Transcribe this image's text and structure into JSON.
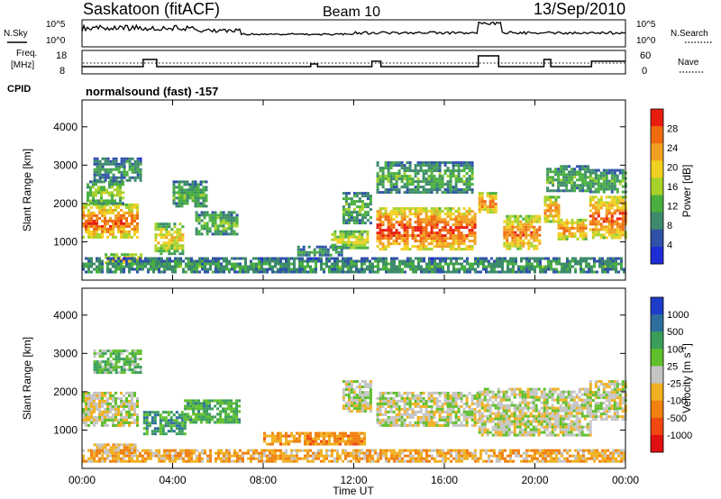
{
  "header": {
    "station": "Saskatoon (fitACF)",
    "beam": "Beam 10",
    "date": "13/Sep/2010"
  },
  "strip_labels": {
    "nsky": "N.Sky",
    "nsky_ticks": [
      "10^5",
      "10^0"
    ],
    "nsearch": "N.Search",
    "nsearch_ticks": [
      "10^5",
      "10^0"
    ],
    "freq_line1": "Freq.",
    "freq_line2": "[MHz]",
    "freq_ticks": [
      "18",
      "8"
    ],
    "nave": "Nave",
    "nave_ticks": [
      "60",
      "0"
    ],
    "cpid": "CPID",
    "cpid_value": "normalsound (fast) -157"
  },
  "x_axis": {
    "label": "Time UT",
    "ticks": [
      "00:00",
      "04:00",
      "08:00",
      "12:00",
      "16:00",
      "20:00",
      "00:00"
    ],
    "range_hours": [
      0,
      24
    ]
  },
  "colors": {
    "power_scale": [
      "#1e2cd6",
      "#2f52a8",
      "#3d8a6c",
      "#49b040",
      "#a6d22a",
      "#f0d020",
      "#f0a020",
      "#f06a10",
      "#e81d10"
    ],
    "velocity_scale": [
      "#1f3cc8",
      "#2e6e9c",
      "#3a9e5a",
      "#5fbf2c",
      "#c4c4c4",
      "#f0b020",
      "#f08010",
      "#f04810",
      "#e01010"
    ]
  },
  "chart_data": [
    {
      "type": "heatmap",
      "title": "",
      "ylabel": "Slant Range [km]",
      "xlabel": "",
      "yticks": [
        1000,
        2000,
        3000,
        4000
      ],
      "ylim": [
        0,
        4700
      ],
      "colorbar": {
        "label": "Power [dB]",
        "ticks": [
          4,
          8,
          12,
          16,
          20,
          24,
          28
        ],
        "range": [
          0,
          32
        ]
      },
      "regions": [
        {
          "t": [
            0.0,
            2.4
          ],
          "r": [
            1100,
            2000
          ],
          "level": 0.85
        },
        {
          "t": [
            0.2,
            1.8
          ],
          "r": [
            2000,
            2600
          ],
          "level": 0.45
        },
        {
          "t": [
            0.5,
            2.6
          ],
          "r": [
            2600,
            3200
          ],
          "level": 0.3
        },
        {
          "t": [
            1.0,
            2.6
          ],
          "r": [
            450,
            700
          ],
          "level": 0.7
        },
        {
          "t": [
            3.2,
            4.5
          ],
          "r": [
            700,
            1500
          ],
          "level": 0.6
        },
        {
          "t": [
            4.0,
            5.5
          ],
          "r": [
            1900,
            2600
          ],
          "level": 0.35
        },
        {
          "t": [
            5.0,
            6.8
          ],
          "r": [
            1200,
            1800
          ],
          "level": 0.4
        },
        {
          "t": [
            9.5,
            11.5
          ],
          "r": [
            650,
            900
          ],
          "level": 0.3
        },
        {
          "t": [
            11.0,
            12.6
          ],
          "r": [
            850,
            1300
          ],
          "level": 0.55
        },
        {
          "t": [
            11.5,
            12.7
          ],
          "r": [
            1500,
            2300
          ],
          "level": 0.35
        },
        {
          "t": [
            13.0,
            17.3
          ],
          "r": [
            800,
            1900
          ],
          "level": 0.9
        },
        {
          "t": [
            13.0,
            17.2
          ],
          "r": [
            2300,
            3100
          ],
          "level": 0.35
        },
        {
          "t": [
            17.5,
            18.3
          ],
          "r": [
            1800,
            2300
          ],
          "level": 0.8
        },
        {
          "t": [
            18.6,
            20.2
          ],
          "r": [
            800,
            1700
          ],
          "level": 0.8
        },
        {
          "t": [
            20.4,
            21.0
          ],
          "r": [
            1500,
            2200
          ],
          "level": 0.75
        },
        {
          "t": [
            21.0,
            22.3
          ],
          "r": [
            1100,
            1600
          ],
          "level": 0.8
        },
        {
          "t": [
            20.5,
            22.4
          ],
          "r": [
            2300,
            3000
          ],
          "level": 0.35
        },
        {
          "t": [
            22.4,
            24.0
          ],
          "r": [
            1100,
            2200
          ],
          "level": 0.85
        },
        {
          "t": [
            22.4,
            24.0
          ],
          "r": [
            2300,
            2900
          ],
          "level": 0.35
        },
        {
          "t": [
            0.0,
            24.0
          ],
          "r": [
            200,
            600
          ],
          "level": 0.3
        }
      ]
    },
    {
      "type": "heatmap",
      "title": "",
      "ylabel": "Slant Range [km]",
      "xlabel": "Time UT",
      "yticks": [
        1000,
        2000,
        3000,
        4000
      ],
      "ylim": [
        0,
        4700
      ],
      "colorbar": {
        "label": "Velocity [m s^-1]",
        "ticks": [
          "1000",
          "500",
          "100",
          "25",
          "-25",
          "-100",
          "-500",
          "-1000"
        ]
      },
      "regions": [
        {
          "t": [
            0.0,
            2.4
          ],
          "r": [
            1100,
            2000
          ],
          "level": 0.5
        },
        {
          "t": [
            0.5,
            2.6
          ],
          "r": [
            2500,
            3100
          ],
          "level": 0.35
        },
        {
          "t": [
            0.5,
            2.3
          ],
          "r": [
            400,
            650
          ],
          "level": 0.6
        },
        {
          "t": [
            2.7,
            4.6
          ],
          "r": [
            900,
            1500
          ],
          "level": 0.25
        },
        {
          "t": [
            4.5,
            7.0
          ],
          "r": [
            1200,
            1800
          ],
          "level": 0.3
        },
        {
          "t": [
            8.0,
            12.5
          ],
          "r": [
            650,
            950
          ],
          "level": 0.7
        },
        {
          "t": [
            11.5,
            12.8
          ],
          "r": [
            1500,
            2300
          ],
          "level": 0.5
        },
        {
          "t": [
            13.0,
            17.5
          ],
          "r": [
            1100,
            2000
          ],
          "level": 0.5
        },
        {
          "t": [
            17.5,
            22.4
          ],
          "r": [
            900,
            2100
          ],
          "level": 0.5
        },
        {
          "t": [
            22.4,
            24.0
          ],
          "r": [
            1300,
            2300
          ],
          "level": 0.5
        },
        {
          "t": [
            0.0,
            24.0
          ],
          "r": [
            150,
            500
          ],
          "level": 0.65
        }
      ]
    }
  ]
}
